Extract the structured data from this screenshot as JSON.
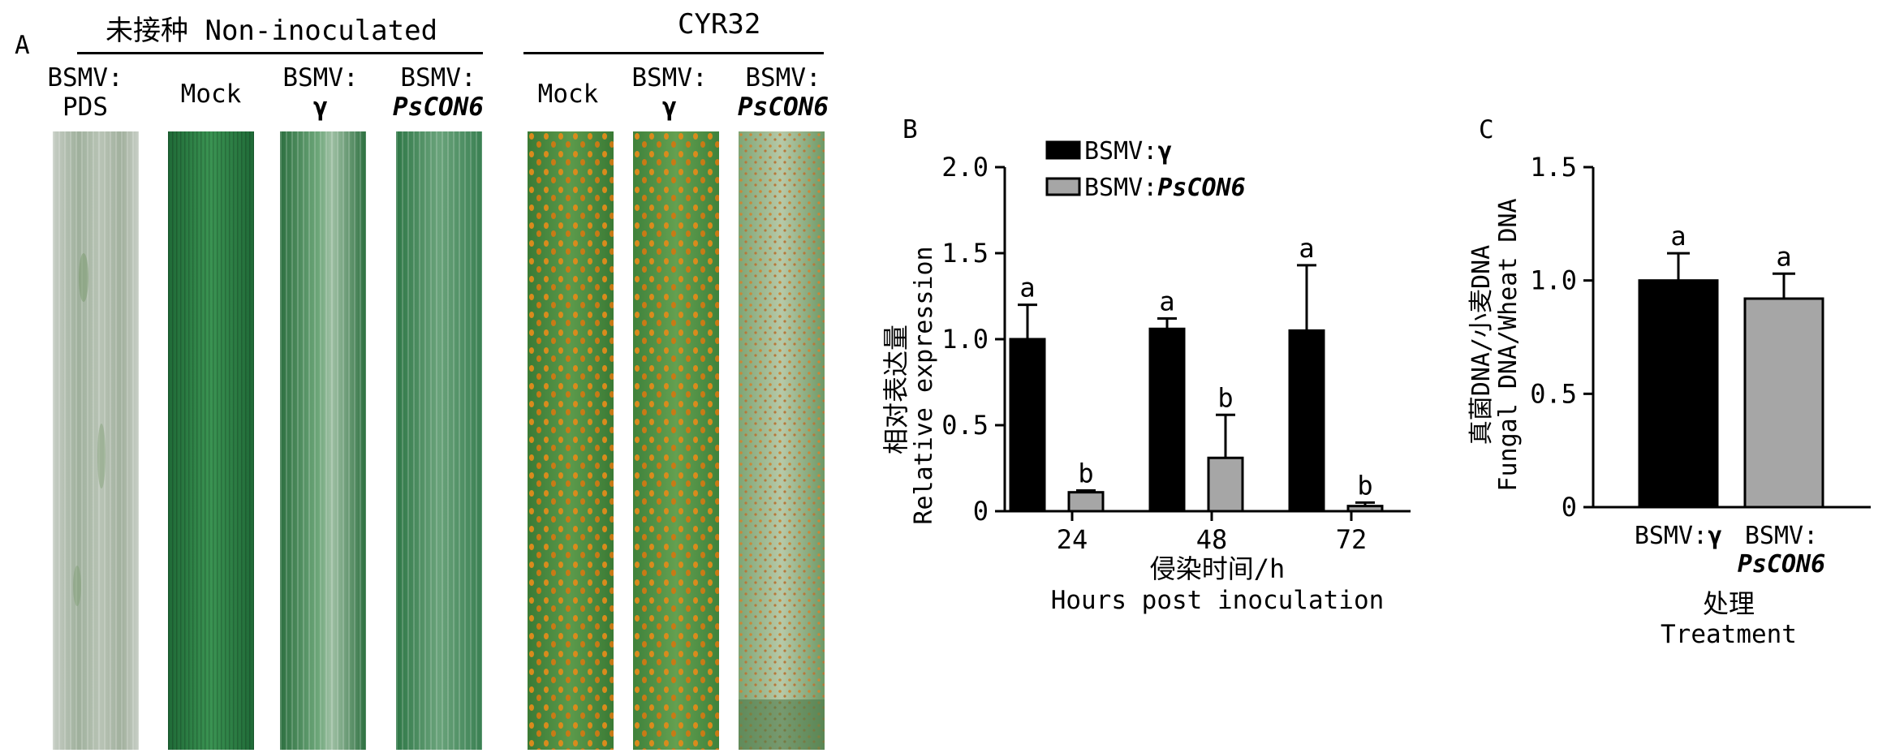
{
  "panel_a": {
    "panel_label": "A",
    "group1_title": "未接种 Non-inoculated",
    "group2_title": "CYR32",
    "leaves": [
      {
        "line1": "BSMV:",
        "line2": "PDS",
        "line2_italic": false,
        "color": "#a9b5a6"
      },
      {
        "line1": "Mock",
        "line2": "",
        "line2_italic": false,
        "color": "#2f8447"
      },
      {
        "line1": "BSMV:",
        "line2": "γ",
        "line2_italic": false,
        "color": "#3f8a4e"
      },
      {
        "line1": "BSMV:",
        "line2": "PsCON6",
        "line2_italic": true,
        "color": "#3d8d57"
      },
      {
        "line1": "Mock",
        "line2": "",
        "line2_italic": false,
        "color": "#4a8a3f"
      },
      {
        "line1": "BSMV:",
        "line2": "γ",
        "line2_italic": false,
        "color": "#4c8f44"
      },
      {
        "line1": "BSMV:",
        "line2": "PsCON6",
        "line2_italic": true,
        "color": "#8fae86"
      }
    ]
  },
  "chart_data": [
    {
      "panel_label": "B",
      "type": "bar",
      "categories": [
        "24",
        "48",
        "72"
      ],
      "series": [
        {
          "name": "BSMV:γ",
          "color": "#000000",
          "values": [
            1.0,
            1.06,
            1.05
          ],
          "errors": [
            0.2,
            0.06,
            0.38
          ],
          "labels": [
            "a",
            "a",
            "a"
          ]
        },
        {
          "name": "BSMV:PsCON6",
          "color": "#a6a6a6",
          "values": [
            0.11,
            0.31,
            0.03
          ],
          "errors": [
            0.01,
            0.25,
            0.02
          ],
          "labels": [
            "b",
            "b",
            "b"
          ]
        }
      ],
      "legend_labels": [
        "BSMV:",
        "γ",
        "BSMV:",
        "PsCON6"
      ],
      "ylabel_cn": "相对表达量",
      "ylabel_en": "Relative expression",
      "xlabel_cn": "侵染时间/h",
      "xlabel_en": "Hours post inoculation",
      "yticks": [
        "0",
        "0.5",
        "1.0",
        "1.5",
        "2.0"
      ],
      "ylim": [
        0,
        2.0
      ],
      "legend": "top"
    },
    {
      "panel_label": "C",
      "type": "bar",
      "categories": [
        "BSMV:γ",
        "BSMV:PsCON6"
      ],
      "category_lines": [
        [
          "BSMV:",
          "γ"
        ],
        [
          "BSMV:",
          "PsCON6"
        ]
      ],
      "values": [
        1.0,
        0.92
      ],
      "errors": [
        0.12,
        0.11
      ],
      "labels": [
        "a",
        "a"
      ],
      "colors": [
        "#000000",
        "#a6a6a6"
      ],
      "ylabel_cn": "真菌DNA/小麦DNA",
      "ylabel_en": "Fungal DNA/Wheat DNA",
      "xlabel_cn": "处理",
      "xlabel_en": "Treatment",
      "yticks": [
        "0",
        "0.5",
        "1.0",
        "1.5"
      ],
      "ylim": [
        0,
        1.5
      ]
    }
  ]
}
